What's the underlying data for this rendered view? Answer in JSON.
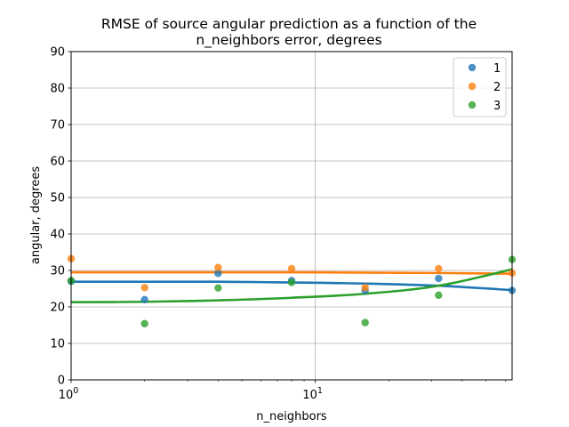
{
  "chart_data": {
    "type": "scatter",
    "title_lines": [
      "RMSE of source angular prediction as a function of the",
      "n_neighbors error, degrees"
    ],
    "xlabel": "n_neighbors",
    "ylabel": "angular, degrees",
    "xscale": "log",
    "xlim": [
      1,
      64
    ],
    "ylim": [
      0,
      90
    ],
    "yticks": [
      0,
      10,
      20,
      30,
      40,
      50,
      60,
      70,
      80,
      90
    ],
    "xticks": [
      {
        "value": 1,
        "base": "10",
        "exp": "0"
      },
      {
        "value": 10,
        "base": "10",
        "exp": "1"
      }
    ],
    "grid": true,
    "legend_position": "top-right",
    "series": [
      {
        "name": "1",
        "color": "#1f77b4",
        "points": [
          [
            1,
            27
          ],
          [
            2,
            22
          ],
          [
            4,
            29.2
          ],
          [
            8,
            27.2
          ],
          [
            16,
            24.5
          ],
          [
            32,
            27.8
          ],
          [
            64,
            24.5
          ]
        ],
        "fit": [
          [
            1,
            26.9
          ],
          [
            2,
            26.9
          ],
          [
            4,
            26.9
          ],
          [
            8,
            26.7
          ],
          [
            16,
            26.4
          ],
          [
            32,
            25.8
          ],
          [
            64,
            24.6
          ]
        ]
      },
      {
        "name": "2",
        "color": "#ff7f0e",
        "points": [
          [
            1,
            33.2
          ],
          [
            2,
            25.3
          ],
          [
            4,
            30.8
          ],
          [
            8,
            30.5
          ],
          [
            16,
            25.3
          ],
          [
            32,
            30.5
          ],
          [
            64,
            29.3
          ]
        ],
        "fit": [
          [
            1,
            29.5
          ],
          [
            2,
            29.5
          ],
          [
            4,
            29.5
          ],
          [
            8,
            29.5
          ],
          [
            16,
            29.4
          ],
          [
            32,
            29.3
          ],
          [
            64,
            29.1
          ]
        ]
      },
      {
        "name": "3",
        "color": "#2ca02c",
        "points": [
          [
            1,
            27.2
          ],
          [
            2,
            15.4
          ],
          [
            4,
            25.2
          ],
          [
            8,
            26.7
          ],
          [
            16,
            15.7
          ],
          [
            32,
            23.2
          ],
          [
            64,
            33
          ]
        ],
        "fit": [
          [
            1,
            21.3
          ],
          [
            2,
            21.4
          ],
          [
            4,
            21.8
          ],
          [
            8,
            22.5
          ],
          [
            16,
            23.6
          ],
          [
            32,
            25.8
          ],
          [
            64,
            30.3
          ]
        ]
      }
    ]
  }
}
